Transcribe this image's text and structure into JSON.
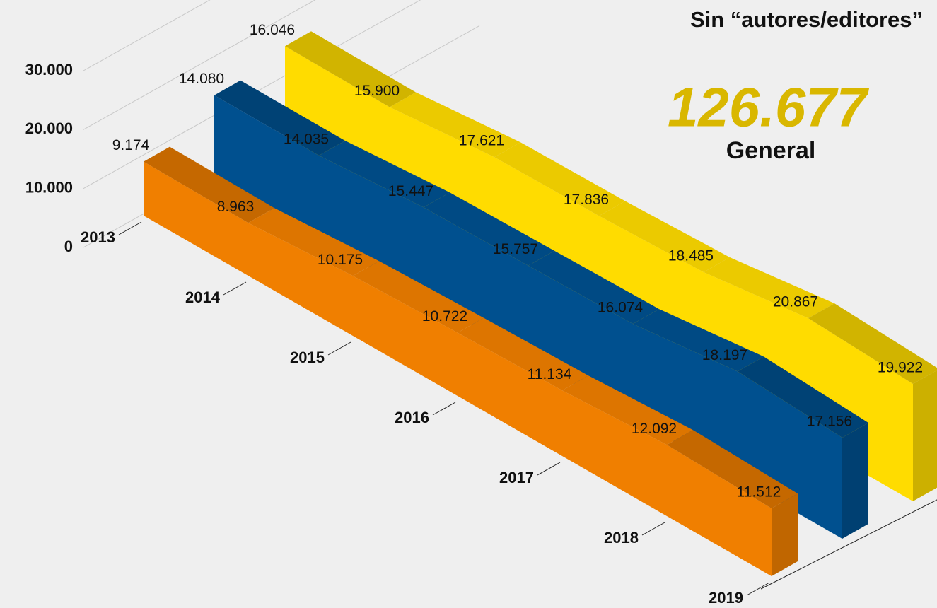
{
  "chart_data": {
    "type": "ribbon3d",
    "title": "Sin “autores/editores”",
    "annotation": "126.677",
    "subtitle": "General",
    "categories": [
      "2013",
      "2014",
      "2015",
      "2016",
      "2017",
      "2018",
      "2019"
    ],
    "ylim": [
      0,
      30000
    ],
    "yticks": [
      0,
      {
        "value": 10000,
        "label": "10.000"
      },
      {
        "value": 20000,
        "label": "20.000"
      },
      {
        "value": 30000,
        "label": "30.000"
      }
    ],
    "grid": true,
    "series": [
      {
        "color": "#f07f00",
        "values": [
          9174,
          8963,
          10175,
          10722,
          11134,
          12092,
          11512
        ],
        "value_labels": [
          "9.174",
          "8.963",
          "10.175",
          "10.722",
          "11.134",
          "12.092",
          "11.512"
        ]
      },
      {
        "color": "#00508f",
        "values": [
          14080,
          14035,
          15447,
          15757,
          16074,
          18197,
          17156
        ],
        "value_labels": [
          "14.080",
          "14.035",
          "15.447",
          "15.757",
          "16.074",
          "18.197",
          "17.156"
        ]
      },
      {
        "color": "#ffdc00",
        "values": [
          16046,
          15900,
          17621,
          17836,
          18485,
          20867,
          19922
        ],
        "value_labels": [
          "16.046",
          "15.900",
          "17.621",
          "17.836",
          "18.485",
          "20.867",
          "19.922"
        ]
      }
    ]
  }
}
